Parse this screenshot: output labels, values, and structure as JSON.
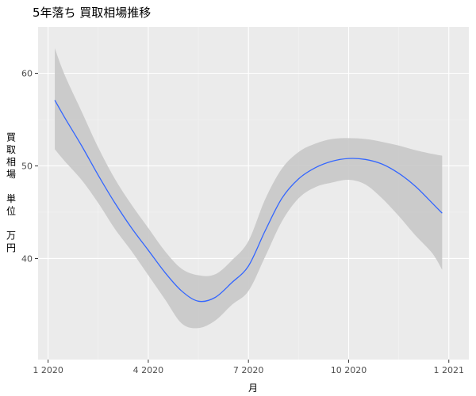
{
  "chart_data": {
    "type": "line",
    "title": "5年落ち 買取相場推移",
    "xlabel": "月",
    "ylabel": "買取相場 単位 万円",
    "ylabel_lines": [
      "買",
      "取",
      "相",
      "場",
      "",
      "単",
      "位",
      "",
      "万",
      "円"
    ],
    "x_ticks": [
      {
        "value": 0,
        "label": "1 2020"
      },
      {
        "value": 3,
        "label": "4 2020"
      },
      {
        "value": 6,
        "label": "7 2020"
      },
      {
        "value": 9,
        "label": "10 2020"
      },
      {
        "value": 12,
        "label": "1 2021"
      }
    ],
    "y_ticks": [
      {
        "value": 40,
        "label": "40"
      },
      {
        "value": 50,
        "label": "50"
      },
      {
        "value": 60,
        "label": "60"
      }
    ],
    "xlim": [
      -0.3,
      12.6
    ],
    "ylim": [
      29.1,
      65.0
    ],
    "grid": true,
    "background": "#ebebeb",
    "line_color": "#3366ff",
    "band_color": "#c8c8c8",
    "series": [
      {
        "x": [
          0.2,
          0.5,
          1.0,
          1.5,
          2.0,
          2.5,
          3.0,
          3.5,
          4.0,
          4.5,
          5.0,
          5.5,
          6.0,
          6.5,
          7.0,
          7.5,
          8.0,
          8.5,
          9.0,
          9.5,
          10.0,
          10.5,
          11.0,
          11.5,
          11.8
        ],
        "y": [
          57.1,
          55.2,
          52.2,
          49.0,
          46.0,
          43.3,
          40.9,
          38.5,
          36.5,
          35.4,
          35.8,
          37.4,
          39.2,
          43.0,
          46.5,
          48.6,
          49.8,
          50.5,
          50.8,
          50.7,
          50.2,
          49.2,
          47.8,
          46.0,
          44.9
        ],
        "lower": [
          51.8,
          50.5,
          48.5,
          46.0,
          43.2,
          40.8,
          38.2,
          35.6,
          33.0,
          32.5,
          33.3,
          35.0,
          36.5,
          40.2,
          44.0,
          46.5,
          47.7,
          48.2,
          48.5,
          48.0,
          46.5,
          44.6,
          42.5,
          40.6,
          38.8
        ],
        "upper": [
          62.7,
          59.8,
          55.9,
          52.0,
          48.6,
          45.8,
          43.3,
          40.8,
          38.9,
          38.2,
          38.3,
          39.8,
          41.9,
          46.4,
          49.7,
          51.5,
          52.4,
          52.9,
          53.0,
          52.9,
          52.6,
          52.2,
          51.7,
          51.3,
          51.1
        ]
      }
    ]
  }
}
